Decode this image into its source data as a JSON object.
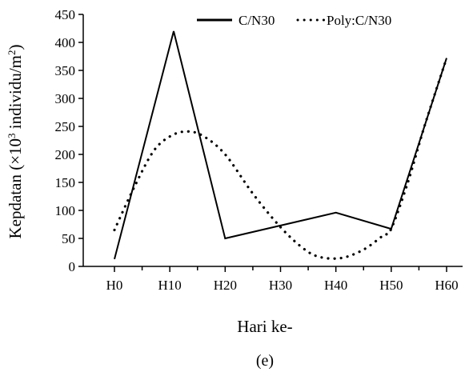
{
  "chart_data": {
    "type": "line",
    "title": "",
    "caption": "(e)",
    "xlabel": "Hari ke-",
    "ylabel": {
      "prefix": "Kepdatan (×10",
      "sup1": "3",
      "middle": " individu/m",
      "sup2": "2",
      "suffix": ")"
    },
    "categories": [
      "H0",
      "H10",
      "H20",
      "H30",
      "H40",
      "H50",
      "H60"
    ],
    "ylim": [
      0,
      450
    ],
    "yticks": [
      0,
      50,
      100,
      150,
      200,
      250,
      300,
      350,
      400,
      450
    ],
    "legend_position": "top-right",
    "grid": false,
    "series": [
      {
        "name": "C/N30",
        "style": "solid",
        "color": "#000000",
        "points": [
          [
            0,
            13
          ],
          [
            1.07,
            420
          ],
          [
            2.0,
            50
          ],
          [
            4.0,
            96
          ],
          [
            5.0,
            67
          ],
          [
            6.0,
            372
          ]
        ]
      },
      {
        "name": "Poly:C/N30",
        "style": "dotted",
        "color": "#000000",
        "points": [
          [
            0,
            65
          ],
          [
            0.35,
            140
          ],
          [
            0.7,
            205
          ],
          [
            1.0,
            232
          ],
          [
            1.3,
            241
          ],
          [
            1.6,
            233
          ],
          [
            2.0,
            200
          ],
          [
            2.5,
            130
          ],
          [
            3.0,
            70
          ],
          [
            3.4,
            33
          ],
          [
            3.7,
            17
          ],
          [
            4.1,
            15
          ],
          [
            4.5,
            30
          ],
          [
            4.85,
            55
          ],
          [
            5.0,
            67
          ],
          [
            5.3,
            150
          ],
          [
            5.6,
            250
          ],
          [
            6.0,
            372
          ]
        ]
      }
    ]
  }
}
